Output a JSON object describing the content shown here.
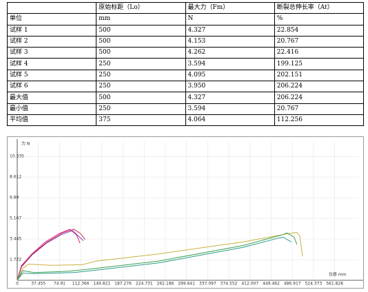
{
  "table": {
    "header": [
      "原始标距（Lo）",
      "最大力（Fm）",
      "断裂总伸长率（At）"
    ],
    "rows": [
      [
        "单位",
        "mm",
        "N",
        "%"
      ],
      [
        "试样 1",
        "500",
        "4.327",
        "22.854"
      ],
      [
        "试样 2",
        "500",
        "4.153",
        "20.767"
      ],
      [
        "试样 3",
        "500",
        "4.262",
        "22.416"
      ],
      [
        "试样 4",
        "250",
        "3.594",
        "199.125"
      ],
      [
        "试样 5",
        "250",
        "4.095",
        "202.151"
      ],
      [
        "试样 6",
        "250",
        "3.950",
        "206.224"
      ],
      [
        "最大值",
        "500",
        "4.327",
        "206.224"
      ],
      [
        "最小值",
        "250",
        "3.594",
        "20.767"
      ],
      [
        "平均值",
        "375",
        "4.064",
        "112.256"
      ]
    ]
  },
  "chart_data": {
    "type": "line",
    "ylabel": "力 N",
    "xlabel": "位移 mm",
    "xlim": [
      0,
      605
    ],
    "ylim": [
      0,
      11.6
    ],
    "xticks": [
      0,
      37.455,
      74.91,
      112.366,
      149.821,
      187.276,
      224.731,
      262.186,
      299.641,
      337.097,
      374.552,
      412.007,
      449.462,
      486.917,
      524.373,
      561.828
    ],
    "yticks": [
      1.722,
      3.445,
      5.167,
      6.89,
      8.612,
      10.335
    ],
    "grid": true,
    "series": [
      {
        "color": "#e0208a",
        "x": [
          0,
          7.3,
          25.6,
          50,
          74.4,
          92.7,
          104.9,
          111
        ],
        "values": [
          0,
          1.21,
          2.18,
          3.21,
          3.9,
          4.25,
          3.79,
          3.1
        ]
      },
      {
        "color": "#7a3fb0",
        "x": [
          0,
          7.3,
          26,
          52,
          78,
          98,
          108,
          117
        ],
        "values": [
          0,
          1.1,
          2.1,
          3.1,
          3.8,
          4.15,
          3.7,
          3.3
        ]
      },
      {
        "color": "#c03050",
        "x": [
          0,
          8,
          27,
          53,
          80,
          100,
          112,
          120
        ],
        "values": [
          0,
          1.2,
          2.2,
          3.2,
          3.95,
          4.26,
          3.9,
          3.4
        ]
      },
      {
        "color": "#2a9a8a",
        "x": [
          0,
          10,
          30,
          100,
          140,
          250,
          400,
          465,
          471,
          485
        ],
        "values": [
          0,
          0.6,
          0.55,
          0.65,
          0.85,
          1.45,
          2.75,
          3.55,
          3.59,
          3.2
        ]
      },
      {
        "color": "#c8b040",
        "x": [
          0,
          10,
          20,
          60,
          115,
          140,
          250,
          400,
          480,
          495,
          500,
          505
        ],
        "values": [
          0,
          1.0,
          1.35,
          1.25,
          1.3,
          1.6,
          2.2,
          3.2,
          3.9,
          4.0,
          3.7,
          2.0
        ]
      },
      {
        "color": "#3aa050",
        "x": [
          0,
          10,
          30,
          90,
          140,
          250,
          400,
          470,
          477,
          490,
          495
        ],
        "values": [
          0,
          0.8,
          0.65,
          0.75,
          1.0,
          1.6,
          2.9,
          3.8,
          3.95,
          3.6,
          3.0
        ]
      }
    ]
  }
}
